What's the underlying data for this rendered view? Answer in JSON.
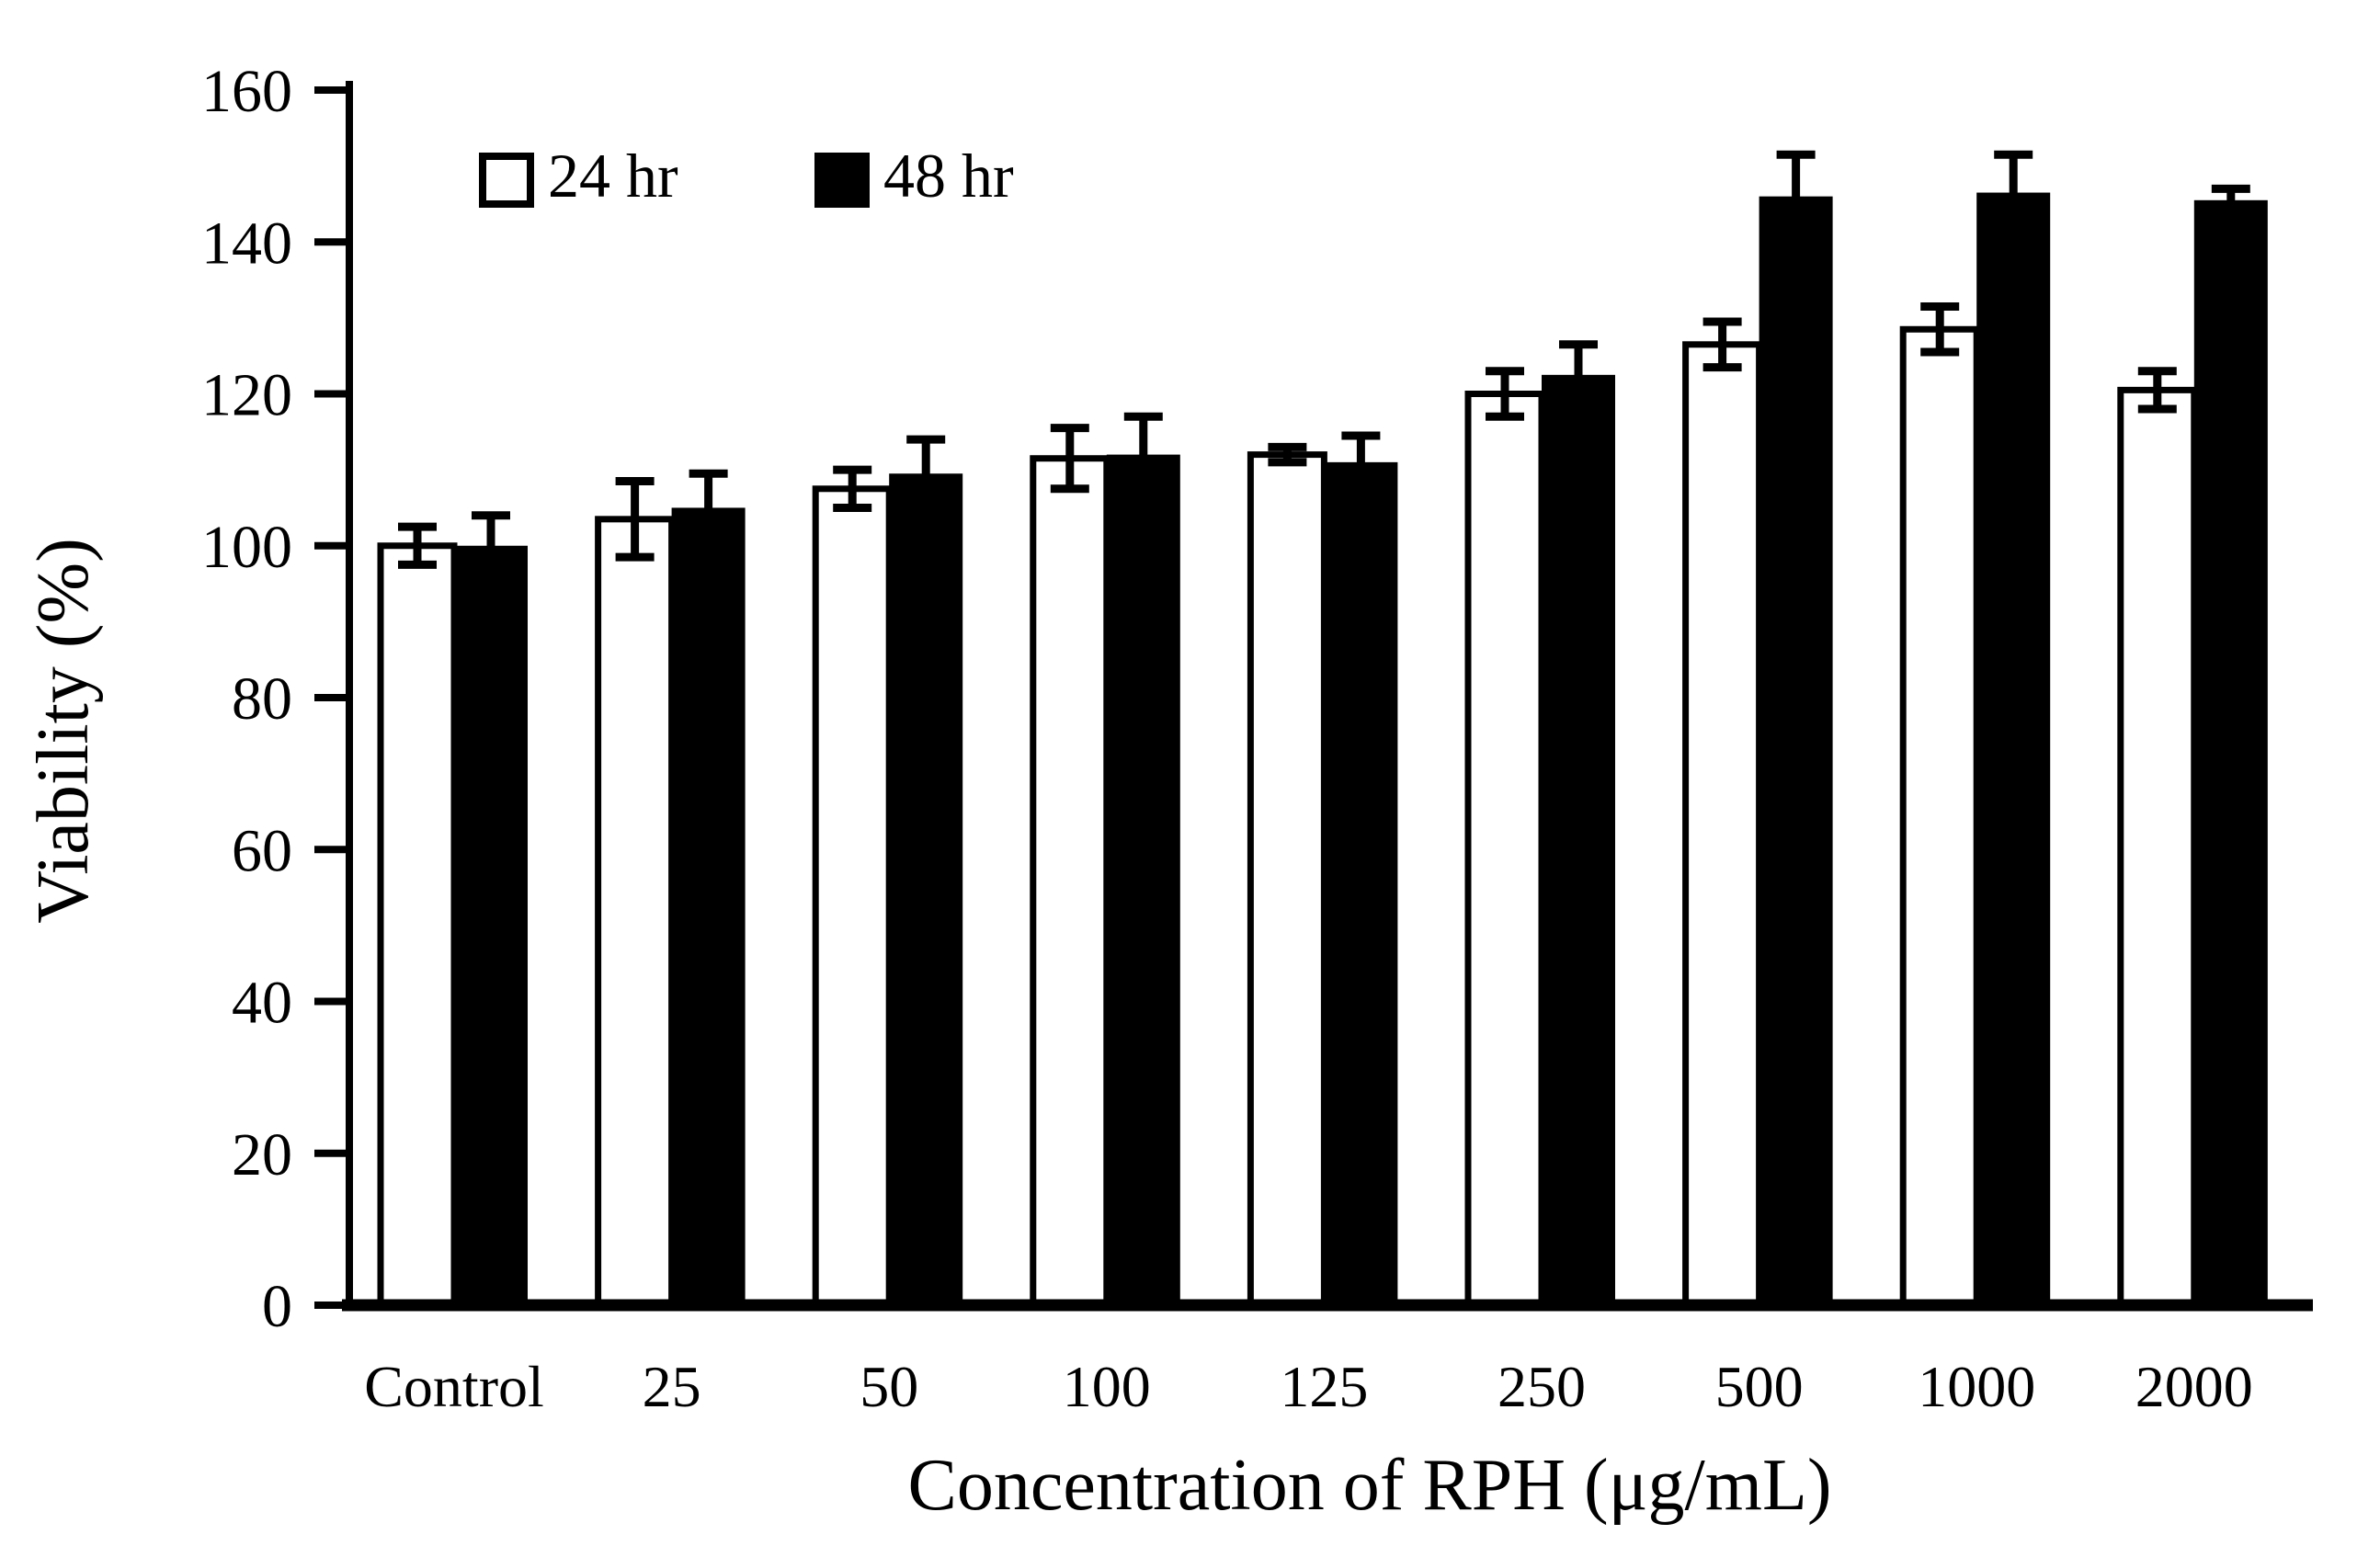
{
  "figure": {
    "background": "#ffffff",
    "ink_color": "#000000"
  },
  "chart_data": {
    "type": "bar",
    "title": "",
    "xlabel": "Concentration of RPH (μg/mL)",
    "ylabel": "Viability (%)",
    "ylim": [
      0,
      160
    ],
    "ytick_step": 20,
    "yticks": [
      0,
      20,
      40,
      60,
      80,
      100,
      120,
      140,
      160
    ],
    "grid": false,
    "legend_position": "top-left inside plot area",
    "error_bars": true,
    "categories": [
      "Control",
      "25",
      "50",
      "100",
      "125",
      "250",
      "500",
      "1000",
      "2000"
    ],
    "series": [
      {
        "name": "24 hr",
        "fill": "#ffffff",
        "stroke": "#000000",
        "values": [
          100,
          103.5,
          107.5,
          111.5,
          112,
          120,
          126.5,
          128.5,
          120.5
        ],
        "errors": [
          2.5,
          5,
          2.5,
          4,
          1,
          3,
          3,
          3,
          2.5
        ]
      },
      {
        "name": "48 hr",
        "fill": "#000000",
        "stroke": "#000000",
        "values": [
          100,
          105,
          109.5,
          112,
          111,
          122.5,
          146,
          146.5,
          145.5
        ],
        "errors": [
          4,
          4.5,
          4.5,
          5,
          3.5,
          4,
          5.5,
          5,
          1.5
        ]
      }
    ]
  }
}
